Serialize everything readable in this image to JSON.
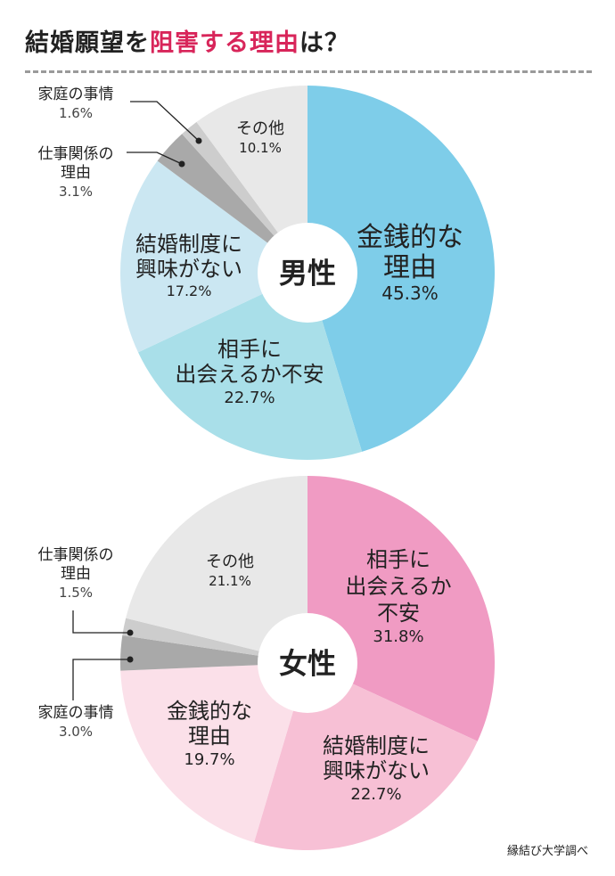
{
  "title": {
    "part1": "結婚願望を",
    "part2": "阻害する理由",
    "part3": "は？"
  },
  "credit": "縁結び大学調べ",
  "chart_data": [
    {
      "type": "pie",
      "center_label": "男性",
      "slices": [
        {
          "label": "金銭的な\n理由",
          "value": 45.3,
          "value_text": "45.3%",
          "color": "#7ecde9"
        },
        {
          "label": "相手に\n出会えるか不安",
          "value": 22.7,
          "value_text": "22.7%",
          "color": "#a9dfe9"
        },
        {
          "label": "結婚制度に\n興味がない",
          "value": 17.2,
          "value_text": "17.2%",
          "color": "#cbe7f2"
        },
        {
          "label": "仕事関係の\n理由",
          "value": 3.1,
          "value_text": "3.1%",
          "color": "#a9a9a9"
        },
        {
          "label": "家庭の事情",
          "value": 1.6,
          "value_text": "1.6%",
          "color": "#cdcdcd"
        },
        {
          "label": "その他",
          "value": 10.1,
          "value_text": "10.1%",
          "color": "#e8e8e8"
        }
      ]
    },
    {
      "type": "pie",
      "center_label": "女性",
      "slices": [
        {
          "label": "相手に\n出会えるか\n不安",
          "value": 31.8,
          "value_text": "31.8%",
          "color": "#f09bc3"
        },
        {
          "label": "結婚制度に\n興味がない",
          "value": 22.7,
          "value_text": "22.7%",
          "color": "#f7c0d5"
        },
        {
          "label": "金銭的な\n理由",
          "value": 19.7,
          "value_text": "19.7%",
          "color": "#fbe0e9"
        },
        {
          "label": "家庭の事情",
          "value": 3.0,
          "value_text": "3.0%",
          "color": "#a9a9a9"
        },
        {
          "label": "仕事関係の\n理由",
          "value": 1.5,
          "value_text": "1.5%",
          "color": "#cdcdcd"
        },
        {
          "label": "その他",
          "value": 21.1,
          "value_text": "21.1%",
          "color": "#e8e8e8"
        }
      ]
    }
  ]
}
